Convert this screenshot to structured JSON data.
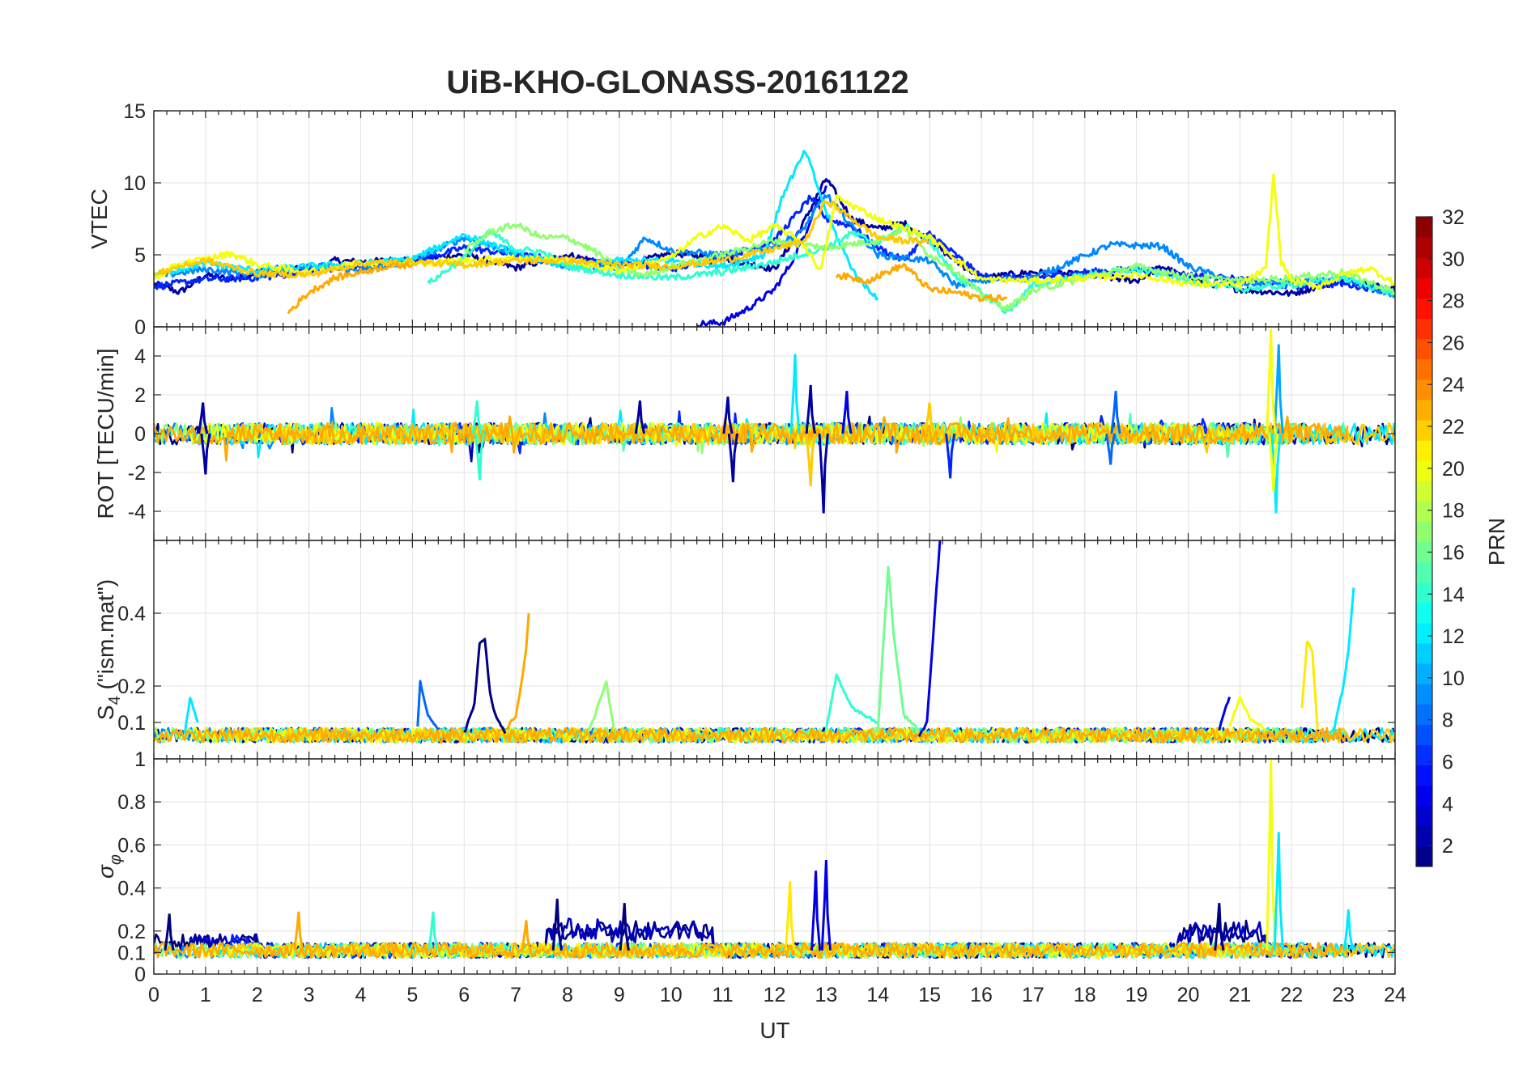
{
  "figure": {
    "title": "UiB-KHO-GLONASS-20161122"
  },
  "chart_data": [
    {
      "id": "vtec",
      "type": "line",
      "ylabel": "VTEC",
      "ylim": [
        0,
        15
      ],
      "yticks": [
        0,
        5,
        10,
        15
      ],
      "ytick_labels": [
        "0",
        "5",
        "10",
        "15"
      ],
      "xlim": [
        0,
        24
      ],
      "grid": true,
      "series": [
        {
          "prn": 2,
          "x": [
            0,
            0.5,
            1,
            1.5,
            2,
            2.5,
            3,
            3.5,
            4,
            5,
            6,
            7,
            8,
            9,
            10,
            11,
            12,
            12.5,
            13,
            13.5,
            14,
            14.5,
            15,
            15.5,
            16,
            17,
            18,
            19,
            19.5,
            20,
            21,
            22,
            23,
            24
          ],
          "y": [
            3.0,
            2.4,
            3.6,
            3.3,
            3.8,
            4.1,
            3.9,
            4.6,
            4.5,
            4.7,
            5.0,
            4.1,
            5.0,
            4.2,
            5.1,
            4.8,
            4.0,
            6.8,
            10.3,
            7.5,
            6.8,
            7.2,
            6.0,
            4.6,
            3.4,
            3.8,
            3.6,
            3.2,
            4.2,
            3.3,
            2.6,
            2.3,
            3.3,
            2.6
          ]
        },
        {
          "prn": 4,
          "x": [
            10.5,
            11.0,
            11.5,
            12.0,
            12.3,
            12.6,
            12.8,
            13.0
          ],
          "y": [
            0.2,
            0.3,
            1.3,
            2.6,
            4.3,
            6.5,
            8.5,
            9.8
          ]
        },
        {
          "prn": 6,
          "x": [
            0,
            1,
            2,
            3,
            4,
            5,
            6,
            7,
            8,
            9,
            10,
            11,
            12,
            12.7,
            13,
            13.5,
            14,
            14.5,
            15,
            15.5,
            16,
            17,
            18,
            19,
            20,
            21,
            22,
            23,
            24
          ],
          "y": [
            2.8,
            3.3,
            3.4,
            3.8,
            4.2,
            4.5,
            5.5,
            5.0,
            4.6,
            4.5,
            4.0,
            4.8,
            6.0,
            9.0,
            7.5,
            7.0,
            5.5,
            4.6,
            6.5,
            5.0,
            3.5,
            3.4,
            3.8,
            4.0,
            3.6,
            3.3,
            2.8,
            3.0,
            2.4
          ]
        },
        {
          "prn": 9,
          "x": [
            0,
            1,
            2,
            3,
            4,
            5,
            6,
            7,
            8,
            9,
            9.5,
            10,
            11,
            12,
            12.5,
            13,
            13.5,
            14,
            15,
            15.5,
            16,
            17,
            18.5,
            19.5,
            20,
            21,
            22,
            23,
            24
          ],
          "y": [
            3.5,
            4.0,
            3.6,
            4.3,
            3.9,
            4.6,
            6.2,
            5.1,
            4.2,
            4.0,
            6.2,
            5.3,
            5.0,
            5.6,
            6.5,
            9.2,
            7.0,
            5.0,
            4.6,
            2.9,
            3.2,
            3.4,
            5.7,
            5.6,
            4.2,
            3.0,
            3.1,
            3.3,
            2.2
          ]
        },
        {
          "prn": 12,
          "x": [
            0,
            1,
            2,
            3,
            4,
            5,
            6,
            7,
            8,
            9,
            10,
            11,
            11.8,
            12.2,
            12.6,
            13.0,
            13.3,
            13.6,
            14.0
          ],
          "y": [
            3.6,
            4.4,
            3.9,
            4.2,
            4.4,
            4.7,
            6.4,
            5.1,
            4.2,
            4.6,
            4.6,
            4.2,
            5.0,
            9.5,
            12.2,
            8.0,
            5.5,
            3.4,
            2.0
          ]
        },
        {
          "prn": 14,
          "x": [
            5.3,
            6,
            6.5,
            7,
            7.5,
            8,
            9,
            10,
            11,
            12,
            13,
            13.5,
            14,
            14.5,
            15,
            15.5,
            16,
            16.5,
            17,
            18,
            19,
            20,
            21,
            22,
            23,
            24
          ],
          "y": [
            3.0,
            4.8,
            6.6,
            5.4,
            5.2,
            4.2,
            3.6,
            3.4,
            3.8,
            4.5,
            5.5,
            6.5,
            5.8,
            7.0,
            6.0,
            3.5,
            2.4,
            1.0,
            2.9,
            3.6,
            4.0,
            3.2,
            2.6,
            2.9,
            3.4,
            2.3
          ]
        },
        {
          "prn": 17,
          "x": [
            6,
            6.5,
            7,
            7.5,
            8,
            8.5,
            9,
            9.5,
            10,
            11,
            12,
            13,
            14,
            14.5,
            15,
            15.5,
            16,
            16.5,
            17,
            18,
            19,
            20,
            21,
            22,
            23,
            24
          ],
          "y": [
            5.2,
            6.6,
            7.1,
            6.2,
            6.2,
            5.3,
            4.0,
            3.6,
            4.2,
            5.0,
            6.0,
            5.5,
            6.0,
            6.8,
            5.0,
            3.9,
            2.2,
            1.3,
            2.5,
            3.4,
            4.2,
            3.5,
            3.2,
            3.4,
            3.8,
            2.4
          ]
        },
        {
          "prn": 20,
          "x": [
            0,
            0.5,
            1,
            1.5,
            2,
            3,
            4,
            5,
            6,
            7,
            8,
            9,
            10,
            10.5,
            11,
            11.5,
            12,
            12.5,
            12.9,
            13.2,
            14,
            15,
            16,
            17,
            18,
            19,
            20,
            21,
            21.5,
            21.65,
            21.8,
            22,
            22.5,
            23,
            23.5,
            24
          ],
          "y": [
            3.3,
            4.4,
            4.7,
            5.1,
            4.3,
            3.8,
            4.5,
            4.4,
            4.6,
            4.8,
            4.6,
            3.9,
            4.8,
            6.2,
            7.0,
            6.0,
            7.0,
            6.0,
            3.9,
            9.0,
            7.5,
            6.2,
            3.3,
            3.2,
            3.4,
            3.6,
            3.0,
            2.9,
            4.0,
            10.6,
            4.5,
            3.2,
            2.8,
            3.6,
            4.1,
            3.0
          ]
        },
        {
          "prn": 22,
          "x": [
            0,
            0.5,
            1,
            2,
            3,
            4,
            5,
            6,
            7,
            8,
            9,
            10,
            11,
            12,
            12.6,
            13,
            13.5,
            14,
            14.5,
            15
          ],
          "y": [
            3.6,
            4.2,
            4.6,
            3.7,
            3.6,
            4.4,
            4.5,
            4.3,
            4.6,
            4.6,
            4.3,
            4.2,
            4.6,
            5.4,
            6.0,
            8.8,
            7.5,
            6.2,
            6.0,
            5.9
          ]
        },
        {
          "prn": 23,
          "x": [
            2.6,
            3.0,
            3.5,
            4.0,
            4.5,
            5.0
          ],
          "y": [
            1.0,
            2.4,
            3.4,
            3.8,
            4.2,
            4.3
          ]
        },
        {
          "prn": 23,
          "x": [
            13.2,
            13.8,
            14.5,
            15.0,
            15.5,
            16.0,
            16.5
          ],
          "y": [
            3.6,
            3.2,
            4.3,
            2.6,
            2.4,
            2.0,
            2.0
          ]
        }
      ]
    },
    {
      "id": "rot",
      "type": "line",
      "ylabel": "ROT [TECU/min]",
      "ylim": [
        -5.5,
        5.5
      ],
      "yticks": [
        -4,
        -2,
        0,
        2,
        4
      ],
      "ytick_labels": [
        "-4",
        "-2",
        "0",
        "2",
        "4"
      ],
      "xlim": [
        0,
        24
      ],
      "grid": true,
      "spikes": [
        {
          "prn": 2,
          "x": 0.95,
          "y": 1.6
        },
        {
          "prn": 2,
          "x": 1.0,
          "y": -2.1
        },
        {
          "prn": 2,
          "x": 9.4,
          "y": 1.7
        },
        {
          "prn": 2,
          "x": 11.1,
          "y": 1.9
        },
        {
          "prn": 2,
          "x": 11.2,
          "y": -2.5
        },
        {
          "prn": 2,
          "x": 12.7,
          "y": 2.5
        },
        {
          "prn": 2,
          "x": 12.95,
          "y": -4.1
        },
        {
          "prn": 4,
          "x": 13.4,
          "y": 2.2
        },
        {
          "prn": 6,
          "x": 15.4,
          "y": -2.3
        },
        {
          "prn": 8,
          "x": 18.6,
          "y": 2.2
        },
        {
          "prn": 8,
          "x": 18.5,
          "y": -1.6
        },
        {
          "prn": 12,
          "x": 12.4,
          "y": 4.1
        },
        {
          "prn": 12,
          "x": 21.7,
          "y": -4.1
        },
        {
          "prn": 10,
          "x": 21.75,
          "y": 4.6
        },
        {
          "prn": 14,
          "x": 6.3,
          "y": -2.4
        },
        {
          "prn": 14,
          "x": 6.25,
          "y": 1.7
        },
        {
          "prn": 20,
          "x": 21.6,
          "y": 5.4
        },
        {
          "prn": 20,
          "x": 21.65,
          "y": -3.0
        },
        {
          "prn": 22,
          "x": 12.7,
          "y": -2.7
        },
        {
          "prn": 22,
          "x": 15.0,
          "y": 1.6
        }
      ]
    },
    {
      "id": "s4",
      "type": "line",
      "ylabel": "S4 (\"ism.mat\")",
      "ylim": [
        0,
        0.6
      ],
      "yticks": [
        0.1,
        0.2,
        0.4
      ],
      "ytick_labels": [
        "0.1",
        "0.2",
        "0.4"
      ],
      "xlim": [
        0,
        24
      ],
      "grid": true,
      "series": [
        {
          "prn": 1,
          "x": [
            6.0,
            6.2,
            6.3,
            6.4,
            6.5,
            6.6,
            6.8
          ],
          "y": [
            0.07,
            0.15,
            0.32,
            0.33,
            0.18,
            0.12,
            0.07
          ]
        },
        {
          "prn": 4,
          "x": [
            14.8,
            14.95,
            15.0,
            15.1,
            15.2
          ],
          "y": [
            0.06,
            0.1,
            0.2,
            0.4,
            0.6
          ]
        },
        {
          "prn": 4,
          "x": [
            20.6,
            20.7,
            20.8
          ],
          "y": [
            0.08,
            0.13,
            0.17
          ]
        },
        {
          "prn": 8,
          "x": [
            5.1,
            5.15,
            5.3,
            5.5
          ],
          "y": [
            0.09,
            0.21,
            0.12,
            0.08
          ]
        },
        {
          "prn": 12,
          "x": [
            0.6,
            0.7,
            0.85
          ],
          "y": [
            0.07,
            0.17,
            0.1
          ]
        },
        {
          "prn": 12,
          "x": [
            22.8,
            23.0,
            23.1,
            23.2
          ],
          "y": [
            0.07,
            0.2,
            0.3,
            0.47
          ]
        },
        {
          "prn": 14,
          "x": [
            13.0,
            13.2,
            13.5,
            14.0
          ],
          "y": [
            0.08,
            0.23,
            0.14,
            0.1
          ]
        },
        {
          "prn": 16,
          "x": [
            14.0,
            14.2,
            14.3,
            14.5,
            14.8
          ],
          "y": [
            0.08,
            0.53,
            0.35,
            0.12,
            0.08
          ]
        },
        {
          "prn": 17,
          "x": [
            8.4,
            8.6,
            8.75,
            8.9
          ],
          "y": [
            0.07,
            0.15,
            0.21,
            0.08
          ]
        },
        {
          "prn": 20,
          "x": [
            20.8,
            21.0,
            21.2,
            21.5
          ],
          "y": [
            0.09,
            0.17,
            0.11,
            0.08
          ]
        },
        {
          "prn": 21,
          "x": [
            22.2,
            22.3,
            22.4,
            22.5
          ],
          "y": [
            0.14,
            0.32,
            0.3,
            0.08
          ]
        },
        {
          "prn": 23,
          "x": [
            6.8,
            7.0,
            7.1,
            7.2,
            7.25
          ],
          "y": [
            0.08,
            0.12,
            0.2,
            0.3,
            0.4
          ]
        }
      ]
    },
    {
      "id": "sigma_phi",
      "type": "line",
      "ylabel": "σφ",
      "ylim": [
        0,
        1
      ],
      "yticks": [
        0,
        0.1,
        0.2,
        0.4,
        0.6,
        0.8,
        1
      ],
      "ytick_labels": [
        "0",
        "0.1",
        "0.2",
        "0.4",
        "0.6",
        "0.8",
        "1"
      ],
      "xlim": [
        0,
        24
      ],
      "xticks": [
        0,
        1,
        2,
        3,
        4,
        5,
        6,
        7,
        8,
        9,
        10,
        11,
        12,
        13,
        14,
        15,
        16,
        17,
        18,
        19,
        20,
        21,
        22,
        23,
        24
      ],
      "xtick_labels": [
        "0",
        "1",
        "2",
        "3",
        "4",
        "5",
        "6",
        "7",
        "8",
        "9",
        "10",
        "11",
        "12",
        "13",
        "14",
        "15",
        "16",
        "17",
        "18",
        "19",
        "20",
        "21",
        "22",
        "23",
        "24"
      ],
      "xlabel": "UT",
      "grid": true,
      "spikes": [
        {
          "prn": 1,
          "x": 0.3,
          "y": 0.28
        },
        {
          "prn": 1,
          "x": 7.8,
          "y": 0.35
        },
        {
          "prn": 1,
          "x": 9.1,
          "y": 0.33
        },
        {
          "prn": 1,
          "x": 20.6,
          "y": 0.33
        },
        {
          "prn": 4,
          "x": 12.8,
          "y": 0.48
        },
        {
          "prn": 4,
          "x": 13.0,
          "y": 0.53
        },
        {
          "prn": 23,
          "x": 2.8,
          "y": 0.29
        },
        {
          "prn": 23,
          "x": 7.2,
          "y": 0.25
        },
        {
          "prn": 21,
          "x": 12.3,
          "y": 0.43
        },
        {
          "prn": 20,
          "x": 21.6,
          "y": 1.0
        },
        {
          "prn": 12,
          "x": 21.75,
          "y": 0.66
        },
        {
          "prn": 14,
          "x": 5.4,
          "y": 0.29
        },
        {
          "prn": 12,
          "x": 23.1,
          "y": 0.3
        }
      ]
    }
  ],
  "colorbar": {
    "label": "PRN",
    "range": [
      1,
      32
    ],
    "ticks": [
      2,
      4,
      6,
      8,
      10,
      12,
      14,
      16,
      18,
      20,
      22,
      24,
      26,
      28,
      30,
      32
    ],
    "tick_labels": [
      "2",
      "4",
      "6",
      "8",
      "10",
      "12",
      "14",
      "16",
      "18",
      "20",
      "22",
      "24",
      "26",
      "28",
      "30",
      "32"
    ],
    "colormap": "jet"
  },
  "colors": {
    "axis": "#262626",
    "grid": "#e3e3e3",
    "background": "#ffffff"
  }
}
